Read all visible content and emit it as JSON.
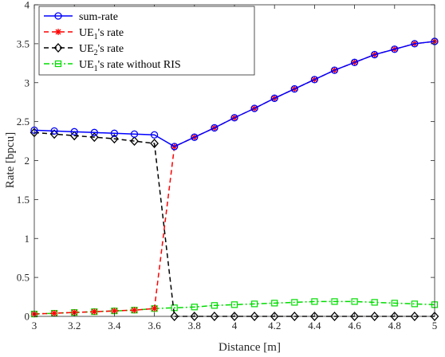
{
  "chart_data": {
    "type": "line",
    "xlabel": "Distance [m]",
    "ylabel": "Rate [bpcu]",
    "xlim": [
      3,
      5
    ],
    "ylim": [
      0,
      4
    ],
    "xticks": [
      3,
      3.2,
      3.4,
      3.6,
      3.8,
      4,
      4.2,
      4.4,
      4.6,
      4.8,
      5
    ],
    "xtick_labels": [
      "3",
      "3.2",
      "3.4",
      "3.6",
      "3.8",
      "4",
      "4.2",
      "4.4",
      "4.6",
      "4.8",
      "5"
    ],
    "yticks": [
      0,
      0.5,
      1,
      1.5,
      2,
      2.5,
      3,
      3.5,
      4
    ],
    "ytick_labels": [
      "0",
      "0.5",
      "1",
      "1.5",
      "2",
      "2.5",
      "3",
      "3.5",
      "4"
    ],
    "grid": false,
    "legend_position": "top-left",
    "x": [
      3.0,
      3.1,
      3.2,
      3.3,
      3.4,
      3.5,
      3.6,
      3.7,
      3.8,
      3.9,
      4.0,
      4.1,
      4.2,
      4.3,
      4.4,
      4.5,
      4.6,
      4.7,
      4.8,
      4.9,
      5.0
    ],
    "series": [
      {
        "name": "sum-rate",
        "color": "#0000ff",
        "dash": "solid",
        "marker": "circle",
        "values": [
          2.39,
          2.38,
          2.37,
          2.36,
          2.35,
          2.34,
          2.33,
          2.18,
          2.3,
          2.42,
          2.55,
          2.67,
          2.8,
          2.92,
          3.04,
          3.16,
          3.26,
          3.36,
          3.43,
          3.5,
          3.53
        ]
      },
      {
        "name": "UE₁'s rate",
        "color": "#ff0000",
        "dash": "dashed",
        "marker": "asterisk",
        "values": [
          0.03,
          0.04,
          0.05,
          0.06,
          0.07,
          0.08,
          0.1,
          2.18,
          2.3,
          2.42,
          2.55,
          2.67,
          2.8,
          2.92,
          3.04,
          3.16,
          3.26,
          3.36,
          3.43,
          3.5,
          3.53
        ]
      },
      {
        "name": "UE₂'s rate",
        "color": "#000000",
        "dash": "dashed",
        "marker": "diamond",
        "values": [
          2.36,
          2.34,
          2.32,
          2.3,
          2.28,
          2.25,
          2.22,
          0.0,
          0.0,
          0.0,
          0.0,
          0.0,
          0.0,
          0.0,
          0.0,
          0.0,
          0.0,
          0.0,
          0.0,
          0.0,
          0.0
        ]
      },
      {
        "name": "UE₁'s rate without RIS",
        "color": "#00dd00",
        "dash": "dashdot",
        "marker": "square",
        "values": [
          0.03,
          0.04,
          0.05,
          0.06,
          0.07,
          0.08,
          0.1,
          0.11,
          0.12,
          0.14,
          0.15,
          0.16,
          0.17,
          0.18,
          0.19,
          0.19,
          0.19,
          0.18,
          0.17,
          0.16,
          0.15
        ]
      }
    ],
    "legend": [
      {
        "label_main": "sum-rate",
        "sub": "",
        "label_rest": ""
      },
      {
        "label_main": "UE",
        "sub": "1",
        "label_rest": "'s rate"
      },
      {
        "label_main": "UE",
        "sub": "2",
        "label_rest": "'s rate"
      },
      {
        "label_main": "UE",
        "sub": "1",
        "label_rest": "'s rate without RIS"
      }
    ]
  }
}
